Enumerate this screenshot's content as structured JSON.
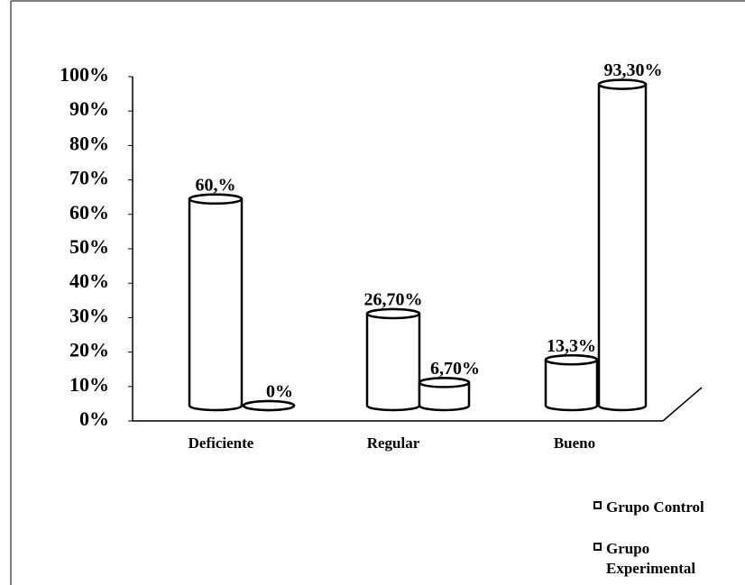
{
  "chart_data": {
    "type": "bar3d",
    "categories": [
      "Deficiente",
      "Regular",
      "Bueno"
    ],
    "series": [
      {
        "name": "Grupo Control",
        "color": "#ffffff",
        "values": [
          60,
          26.7,
          13.3
        ],
        "value_labels": [
          "60,%",
          "26,70%",
          "13,3%"
        ]
      },
      {
        "name": "Grupo Experimental",
        "color": "#ffffff",
        "values": [
          0,
          6.7,
          93.3
        ],
        "value_labels": [
          "0%",
          "6,70%",
          "93,30%"
        ]
      }
    ],
    "ylim": [
      0,
      100
    ],
    "yticks": [
      {
        "value": 0,
        "label": "0%"
      },
      {
        "value": 10,
        "label": "10%"
      },
      {
        "value": 20,
        "label": "20%"
      },
      {
        "value": 30,
        "label": "30%"
      },
      {
        "value": 40,
        "label": "40%"
      },
      {
        "value": 50,
        "label": "50%"
      },
      {
        "value": 60,
        "label": "60%"
      },
      {
        "value": 70,
        "label": "70%"
      },
      {
        "value": 80,
        "label": "80%"
      },
      {
        "value": 90,
        "label": "90%"
      },
      {
        "value": 100,
        "label": "100%"
      }
    ],
    "legend": "bottom-right"
  }
}
